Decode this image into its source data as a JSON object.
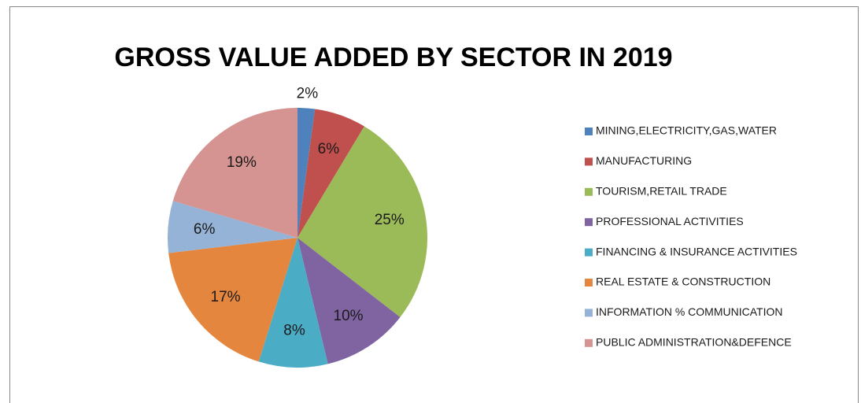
{
  "chart_data": {
    "type": "pie",
    "title": "GROSS VALUE ADDED BY SECTOR IN 2019",
    "categories": [
      "MINING,ELECTRICITY,GAS,WATER",
      "MANUFACTURING",
      "TOURISM,RETAIL TRADE",
      "PROFESSIONAL ACTIVITIES",
      "FINANCING & INSURANCE ACTIVITIES",
      "REAL ESTATE & CONSTRUCTION",
      "INFORMATION % COMMUNICATION",
      "PUBLIC ADMINISTRATION&DEFENCE"
    ],
    "values": [
      2,
      6,
      25,
      10,
      8,
      17,
      6,
      19
    ],
    "value_labels": [
      "2%",
      "6%",
      "25%",
      "10%",
      "8%",
      "17%",
      "6%",
      "19%"
    ],
    "colors": [
      "#4f81bd",
      "#c0504d",
      "#9bbb59",
      "#8064a2",
      "#4bacc6",
      "#e5863f",
      "#95b3d7",
      "#d59391"
    ],
    "legend": "right"
  }
}
